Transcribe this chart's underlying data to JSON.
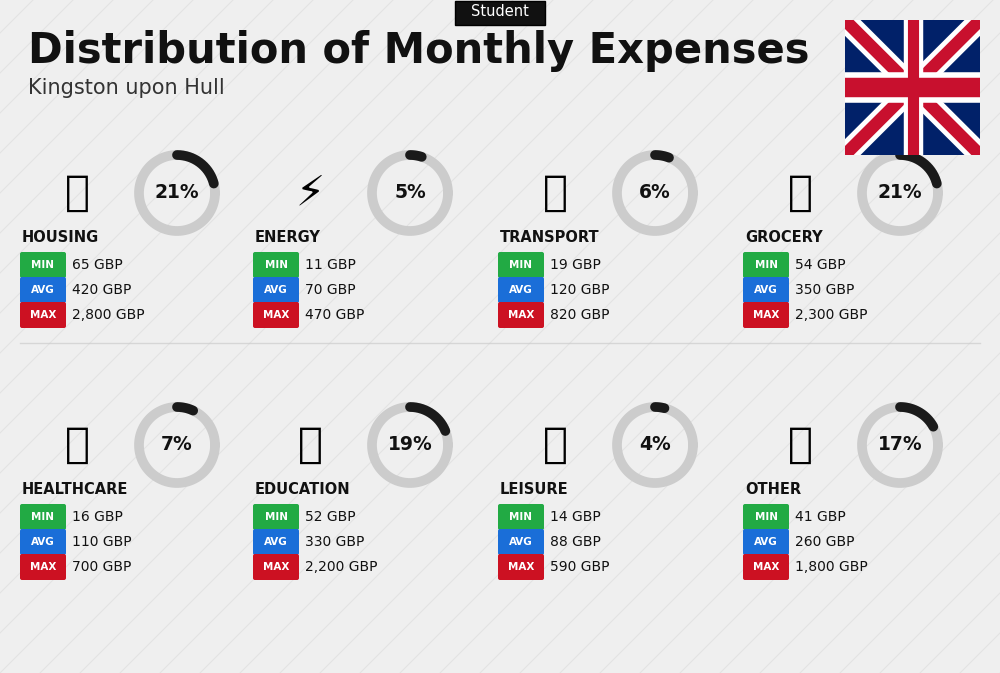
{
  "title": "Distribution of Monthly Expenses",
  "subtitle": "Kingston upon Hull",
  "tag": "Student",
  "background_color": "#efefef",
  "categories": [
    {
      "name": "HOUSING",
      "pct": 21,
      "min": "65 GBP",
      "avg": "420 GBP",
      "max": "2,800 GBP",
      "row": 0,
      "col": 0
    },
    {
      "name": "ENERGY",
      "pct": 5,
      "min": "11 GBP",
      "avg": "70 GBP",
      "max": "470 GBP",
      "row": 0,
      "col": 1
    },
    {
      "name": "TRANSPORT",
      "pct": 6,
      "min": "19 GBP",
      "avg": "120 GBP",
      "max": "820 GBP",
      "row": 0,
      "col": 2
    },
    {
      "name": "GROCERY",
      "pct": 21,
      "min": "54 GBP",
      "avg": "350 GBP",
      "max": "2,300 GBP",
      "row": 0,
      "col": 3
    },
    {
      "name": "HEALTHCARE",
      "pct": 7,
      "min": "16 GBP",
      "avg": "110 GBP",
      "max": "700 GBP",
      "row": 1,
      "col": 0
    },
    {
      "name": "EDUCATION",
      "pct": 19,
      "min": "52 GBP",
      "avg": "330 GBP",
      "max": "2,200 GBP",
      "row": 1,
      "col": 1
    },
    {
      "name": "LEISURE",
      "pct": 4,
      "min": "14 GBP",
      "avg": "88 GBP",
      "max": "590 GBP",
      "row": 1,
      "col": 2
    },
    {
      "name": "OTHER",
      "pct": 17,
      "min": "41 GBP",
      "avg": "260 GBP",
      "max": "1,800 GBP",
      "row": 1,
      "col": 3
    }
  ],
  "min_color": "#22aa44",
  "avg_color": "#1a6ed8",
  "max_color": "#cc1122",
  "title_color": "#111111",
  "subtitle_color": "#333333",
  "tag_bg": "#111111",
  "tag_text": "#ffffff",
  "arc_color": "#1a1a1a",
  "arc_bg_color": "#cccccc",
  "stripe_color": "#d8d8d8"
}
